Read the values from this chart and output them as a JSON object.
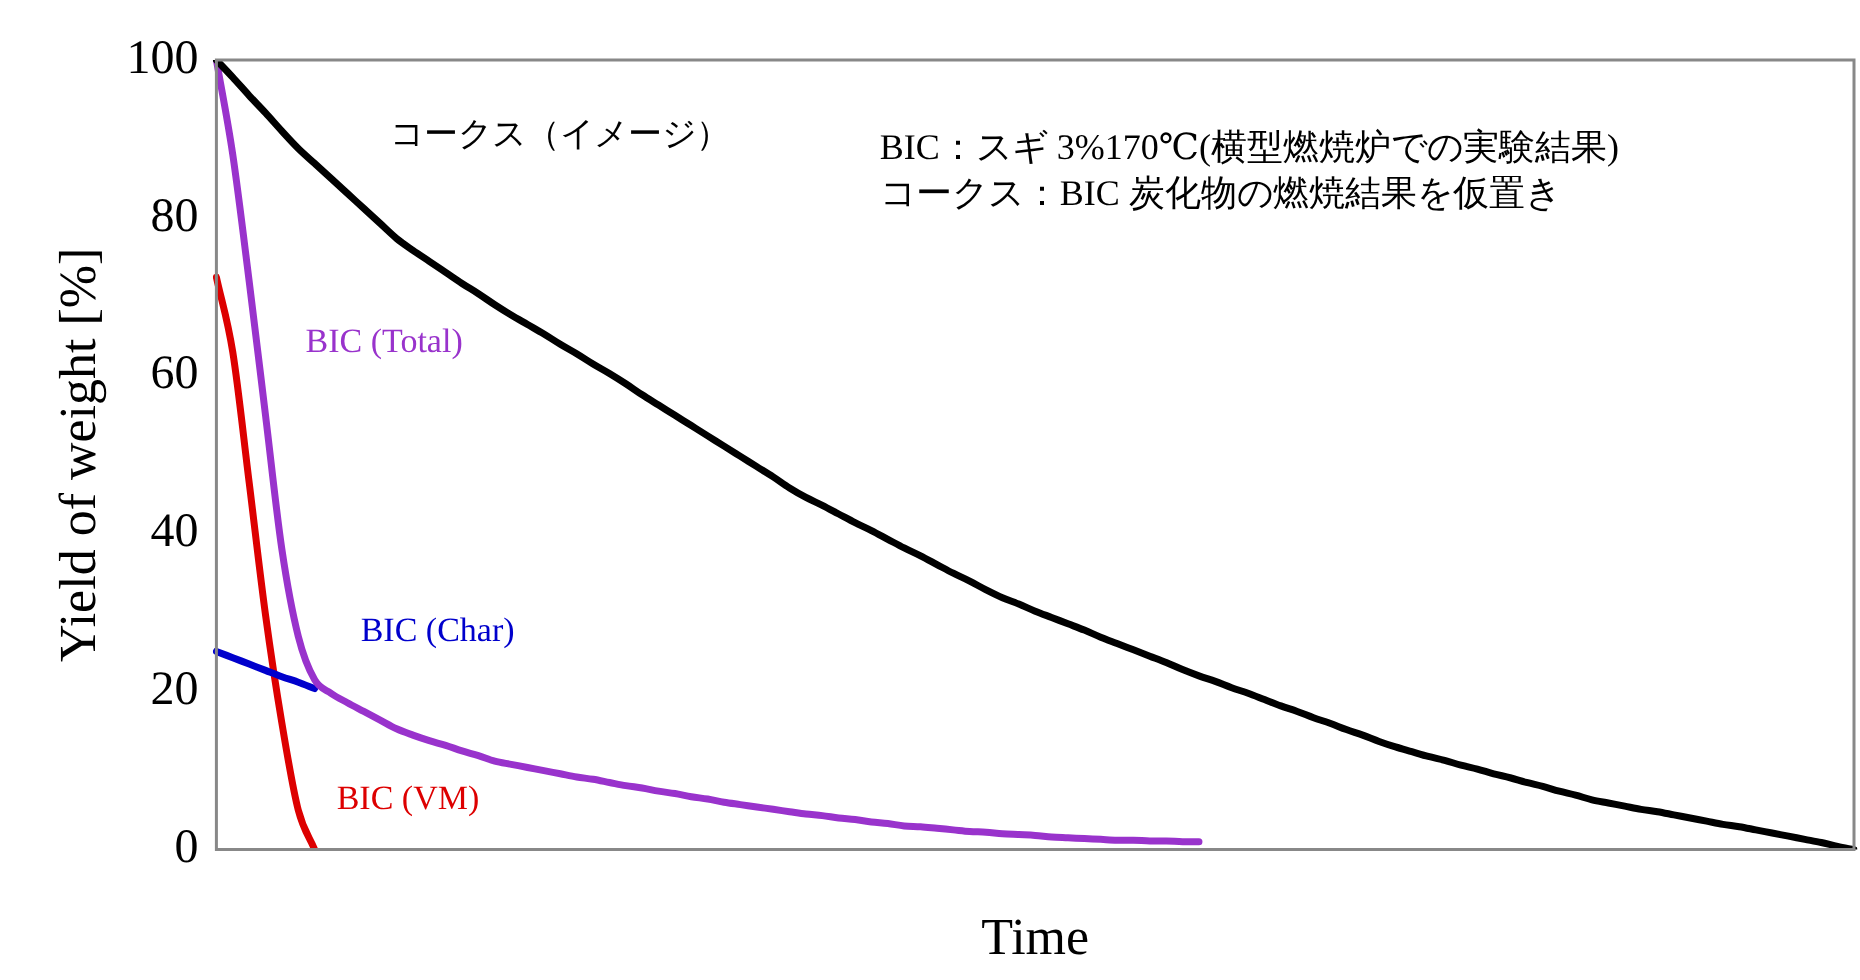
{
  "chart_data": {
    "type": "line",
    "xlabel": "Time",
    "ylabel": "Yield of weight [%]",
    "categories": [
      null,
      null,
      null,
      null,
      null,
      null,
      null,
      null,
      null,
      null,
      null,
      null,
      null,
      null,
      null,
      null,
      null,
      null,
      null,
      null,
      null,
      null,
      null,
      null,
      null,
      null,
      null,
      null,
      null,
      null,
      null,
      null,
      null,
      null,
      null,
      null,
      null,
      null,
      null,
      null,
      null,
      null,
      null,
      null,
      null,
      null,
      null,
      null,
      null,
      null,
      null,
      null,
      null,
      null,
      null,
      null,
      null,
      null,
      null,
      null,
      null,
      null,
      null,
      null,
      null,
      null,
      null,
      null,
      null,
      null,
      null,
      null,
      null,
      null,
      null,
      null,
      null,
      null,
      null,
      null,
      null,
      null,
      null,
      null,
      null,
      null,
      null,
      null,
      null,
      null,
      null,
      null,
      null,
      null,
      null,
      null,
      null,
      null,
      null,
      null,
      null
    ],
    "series": [
      {
        "name": "コークス（イメージ）",
        "color": "#000000",
        "values": [
          100,
          97.8,
          95.5,
          93.3,
          91.0,
          88.8,
          86.9,
          85.0,
          83.1,
          81.2,
          79.3,
          77.4,
          75.9,
          74.5,
          73.1,
          71.7,
          70.4,
          69.0,
          67.7,
          66.5,
          65.3,
          64.0,
          62.8,
          61.5,
          60.3,
          59.0,
          57.6,
          56.3,
          55.0,
          53.7,
          52.4,
          51.1,
          49.8,
          48.5,
          47.2,
          45.8,
          44.6,
          43.6,
          42.5,
          41.4,
          40.4,
          39.3,
          38.2,
          37.2,
          36.1,
          35.0,
          34.0,
          32.9,
          31.9,
          31.1,
          30.2,
          29.4,
          28.6,
          27.8,
          26.9,
          26.1,
          25.3,
          24.5,
          23.7,
          22.8,
          22.0,
          21.3,
          20.5,
          19.8,
          19.0,
          18.2,
          17.5,
          16.7,
          16.0,
          15.2,
          14.5,
          13.7,
          13.0,
          12.4,
          11.8,
          11.3,
          10.7,
          10.2,
          9.6,
          9.1,
          8.5,
          8.0,
          7.4,
          6.9,
          6.3,
          5.9,
          5.5,
          5.1,
          4.8,
          4.4,
          4.0,
          3.6,
          3.2,
          2.9,
          2.5,
          2.1,
          1.7,
          1.3,
          0.9,
          0.4,
          0
        ]
      },
      {
        "name": "BIC (Total)",
        "color": "#9933cc",
        "values": [
          100,
          88,
          72,
          55,
          38,
          27,
          21.5,
          19.8,
          18.6,
          17.5,
          16.4,
          15.3,
          14.5,
          13.8,
          13.2,
          12.5,
          11.9,
          11.2,
          10.8,
          10.4,
          10.0,
          9.6,
          9.2,
          8.9,
          8.5,
          8.1,
          7.8,
          7.4,
          7.1,
          6.7,
          6.4,
          6.0,
          5.7,
          5.4,
          5.1,
          4.8,
          4.5,
          4.3,
          4.0,
          3.8,
          3.5,
          3.3,
          3.0,
          2.9,
          2.7,
          2.5,
          2.3,
          2.2,
          2.0,
          1.9,
          1.8,
          1.6,
          1.5,
          1.4,
          1.3,
          1.2,
          1.2,
          1.1,
          1.1,
          1.0,
          1.0,
          null,
          null,
          null,
          null,
          null,
          null,
          null,
          null,
          null,
          null,
          null,
          null,
          null,
          null,
          null,
          null,
          null,
          null,
          null,
          null,
          null,
          null,
          null,
          null,
          null,
          null,
          null,
          null,
          null,
          null,
          null,
          null,
          null,
          null,
          null,
          null,
          null,
          null,
          null,
          null
        ]
      },
      {
        "name": "BIC (Char)",
        "color": "#0000cc",
        "values": [
          25.1,
          24.3,
          23.5,
          22.7,
          21.9,
          21.2,
          20.4,
          null,
          null,
          null,
          null,
          null,
          null,
          null,
          null,
          null,
          null,
          null,
          null,
          null,
          null,
          null,
          null,
          null,
          null,
          null,
          null,
          null,
          null,
          null,
          null,
          null,
          null,
          null,
          null,
          null,
          null,
          null,
          null,
          null,
          null,
          null,
          null,
          null,
          null,
          null,
          null,
          null,
          null,
          null,
          null,
          null,
          null,
          null,
          null,
          null,
          null,
          null,
          null,
          null,
          null,
          null,
          null,
          null,
          null,
          null,
          null,
          null,
          null,
          null,
          null,
          null,
          null,
          null,
          null,
          null,
          null,
          null,
          null,
          null,
          null,
          null,
          null,
          null,
          null,
          null,
          null,
          null,
          null,
          null,
          null,
          null,
          null,
          null,
          null,
          null,
          null,
          null,
          null,
          null,
          null
        ]
      },
      {
        "name": "BIC (VM)",
        "color": "#dd0000",
        "values": [
          72.5,
          63,
          46.5,
          29.7,
          16,
          5,
          0,
          null,
          null,
          null,
          null,
          null,
          null,
          null,
          null,
          null,
          null,
          null,
          null,
          null,
          null,
          null,
          null,
          null,
          null,
          null,
          null,
          null,
          null,
          null,
          null,
          null,
          null,
          null,
          null,
          null,
          null,
          null,
          null,
          null,
          null,
          null,
          null,
          null,
          null,
          null,
          null,
          null,
          null,
          null,
          null,
          null,
          null,
          null,
          null,
          null,
          null,
          null,
          null,
          null,
          null,
          null,
          null,
          null,
          null,
          null,
          null,
          null,
          null,
          null,
          null,
          null,
          null,
          null,
          null,
          null,
          null,
          null,
          null,
          null,
          null,
          null,
          null,
          null,
          null,
          null,
          null,
          null,
          null,
          null,
          null,
          null,
          null,
          null,
          null,
          null,
          null,
          null,
          null,
          null,
          null
        ]
      }
    ],
    "ylim": [
      0,
      100
    ],
    "yticks": [
      0,
      20,
      40,
      60,
      80,
      100
    ],
    "tick_labels": "y",
    "grid": false,
    "legend": false,
    "marker": "none",
    "annotations": [
      "BIC：スギ 3%170℃(横型燃焼炉での実験結果)",
      "コークス：BIC 炭化物の燃焼結果を仮置き"
    ]
  }
}
